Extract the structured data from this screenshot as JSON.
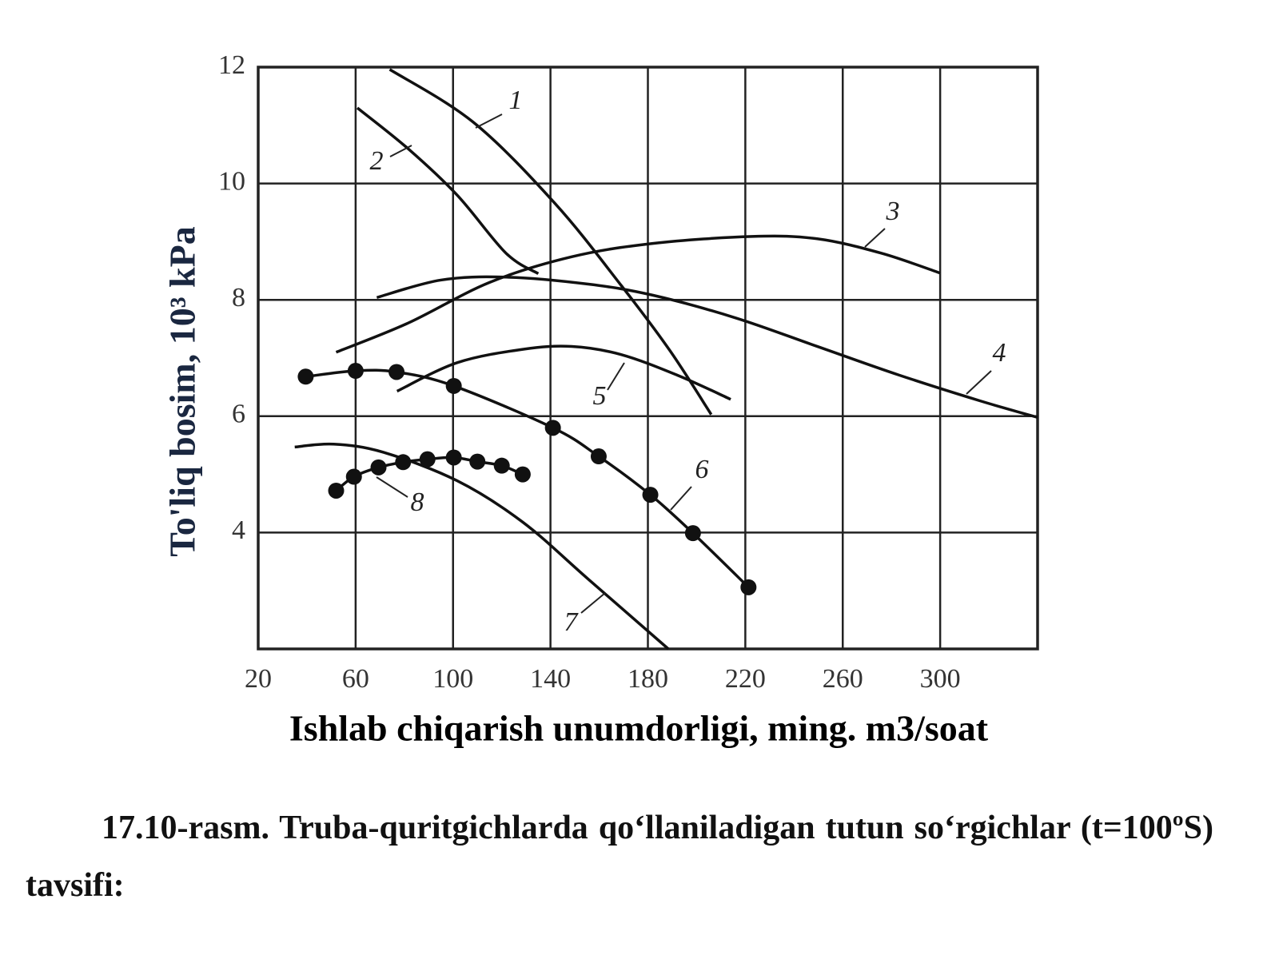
{
  "chart_data": {
    "type": "line",
    "xlabel": "Ishlab chiqarish unumdorligi, ming. m3/soat",
    "ylabel": "To'liq bosim, 10³ kPa",
    "xlim": [
      20,
      340
    ],
    "xticks": [
      20,
      60,
      100,
      140,
      180,
      220,
      260,
      300
    ],
    "ylim": [
      2,
      12
    ],
    "yticks": [
      4,
      6,
      8,
      10,
      12
    ],
    "grid": true,
    "series": [
      {
        "name": "1",
        "color": "#111111",
        "markers": false,
        "x": [
          74,
          108.4,
          142,
          169,
          189,
          206
        ],
        "values": [
          11.96,
          11.05,
          9.65,
          8.25,
          7.13,
          6.03
        ]
      },
      {
        "name": "2",
        "color": "#111111",
        "markers": false,
        "x": [
          60.7,
          81.5,
          101.7,
          121.8,
          135
        ],
        "values": [
          11.3,
          10.6,
          9.8,
          8.8,
          8.45
        ]
      },
      {
        "name": "3",
        "color": "#111111",
        "markers": false,
        "x": [
          52,
          81.5,
          115,
          148.7,
          182,
          222.8,
          249.5,
          276,
          300
        ],
        "values": [
          7.1,
          7.6,
          8.3,
          8.74,
          8.97,
          9.09,
          9.05,
          8.8,
          8.46
        ]
      },
      {
        "name": "4",
        "color": "#111111",
        "markers": false,
        "x": [
          68.7,
          95,
          121.8,
          155.5,
          182,
          216,
          249.5,
          282.9,
          316.7,
          340
        ],
        "values": [
          8.04,
          8.34,
          8.39,
          8.27,
          8.08,
          7.69,
          7.2,
          6.71,
          6.26,
          5.98
        ]
      },
      {
        "name": "5",
        "color": "#111111",
        "markers": false,
        "x": [
          77,
          101.7,
          128.6,
          148.7,
          169,
          192.4,
          214
        ],
        "values": [
          6.43,
          6.92,
          7.15,
          7.2,
          7.06,
          6.7,
          6.29
        ]
      },
      {
        "name": "6",
        "color": "#111111",
        "markers": true,
        "x": [
          39.5,
          60,
          76.8,
          100.3,
          141,
          159.8,
          181,
          198.5,
          221.3
        ],
        "values": [
          6.68,
          6.78,
          6.76,
          6.52,
          5.8,
          5.31,
          4.65,
          3.99,
          3.06
        ]
      },
      {
        "name": "7",
        "color": "#111111",
        "markers": false,
        "x": [
          35,
          51,
          71.4,
          101.7,
          128.6,
          155.5,
          188.4
        ],
        "values": [
          5.47,
          5.52,
          5.38,
          4.89,
          4.18,
          3.2,
          2.0
        ]
      },
      {
        "name": "8",
        "color": "#111111",
        "markers": true,
        "x": [
          52,
          59.3,
          69.4,
          79.5,
          89.5,
          100.3,
          110,
          120,
          128.6
        ],
        "values": [
          4.72,
          4.96,
          5.12,
          5.21,
          5.26,
          5.29,
          5.22,
          5.15,
          5.0
        ]
      }
    ]
  },
  "caption": "17.10-rasm. Truba-quritgichlarda qo‘llaniladigan tutun so‘rgichlar (t=100ºS) tavsifi:"
}
